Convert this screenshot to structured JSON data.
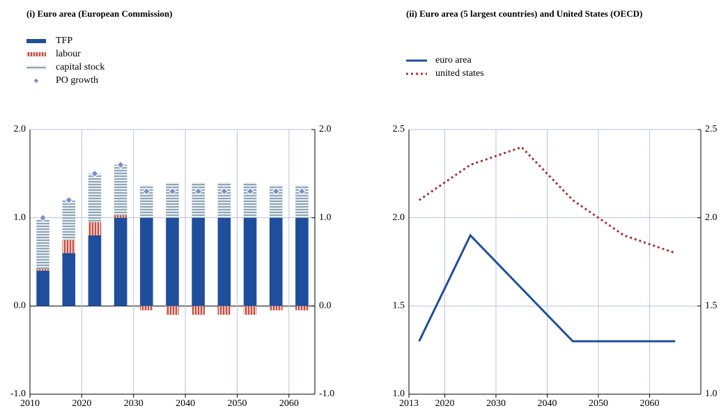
{
  "chart_data": [
    {
      "type": "bar",
      "title": "(i) Euro area (European Commission)",
      "x": [
        2012.5,
        2017.5,
        2022.5,
        2027.5,
        2032.5,
        2037.5,
        2042.5,
        2047.5,
        2052.5,
        2057.5,
        2062.5
      ],
      "series": [
        {
          "name": "TFP",
          "color": "#1f4e9c",
          "kind": "bar",
          "values": [
            0.4,
            0.6,
            0.8,
            1.0,
            1.0,
            1.0,
            1.0,
            1.0,
            1.0,
            1.0,
            1.0
          ]
        },
        {
          "name": "labour",
          "color": "#c0504d",
          "kind": "bar",
          "pattern": "vertical",
          "values": [
            0.02,
            0.15,
            0.15,
            0.03,
            -0.05,
            -0.1,
            -0.1,
            -0.1,
            -0.1,
            -0.05,
            -0.05
          ]
        },
        {
          "name": "capital stock",
          "color": "#6f8fa0",
          "kind": "bar",
          "pattern": "horizontal",
          "values": [
            0.56,
            0.45,
            0.55,
            0.57,
            0.37,
            0.4,
            0.4,
            0.4,
            0.4,
            0.37,
            0.37
          ]
        },
        {
          "name": "PO growth",
          "color": "#7b8fd0",
          "kind": "scatter",
          "values": [
            1.0,
            1.2,
            1.5,
            1.6,
            1.3,
            1.3,
            1.3,
            1.3,
            1.3,
            1.3,
            1.3
          ]
        }
      ],
      "xlim": [
        2010,
        2065
      ],
      "xticks": [
        2010,
        2020,
        2030,
        2040,
        2050,
        2060
      ],
      "ylim": [
        -1,
        2
      ],
      "yticks": [
        {
          "value": -1,
          "label": "-1.0"
        },
        {
          "value": 0,
          "label": "0.0"
        },
        {
          "value": 1,
          "label": "1.0"
        },
        {
          "value": 2,
          "label": "2.0"
        }
      ],
      "grid": true
    },
    {
      "type": "line",
      "title": "(ii) Euro area (5 largest countries) and United States (OECD)",
      "x": [
        2015,
        2025,
        2035,
        2045,
        2055,
        2065
      ],
      "series": [
        {
          "name": "euro area",
          "color": "#1f4e9c",
          "dash": "solid",
          "values": [
            1.3,
            1.9,
            1.6,
            1.3,
            1.3,
            1.3
          ]
        },
        {
          "name": "united states",
          "color": "#a83232",
          "dash": "dotted",
          "values": [
            2.1,
            2.3,
            2.4,
            2.1,
            1.9,
            1.8
          ]
        }
      ],
      "xlim": [
        2013,
        2070
      ],
      "xticks": [
        2013,
        2020,
        2030,
        2040,
        2050,
        2060
      ],
      "ylim": [
        1,
        2.5
      ],
      "yticks": [
        {
          "value": 1,
          "label": "1.0"
        },
        {
          "value": 1.5,
          "label": "1.5"
        },
        {
          "value": 2,
          "label": "2.0"
        },
        {
          "value": 2.5,
          "label": "2.5"
        }
      ],
      "grid": true
    }
  ]
}
